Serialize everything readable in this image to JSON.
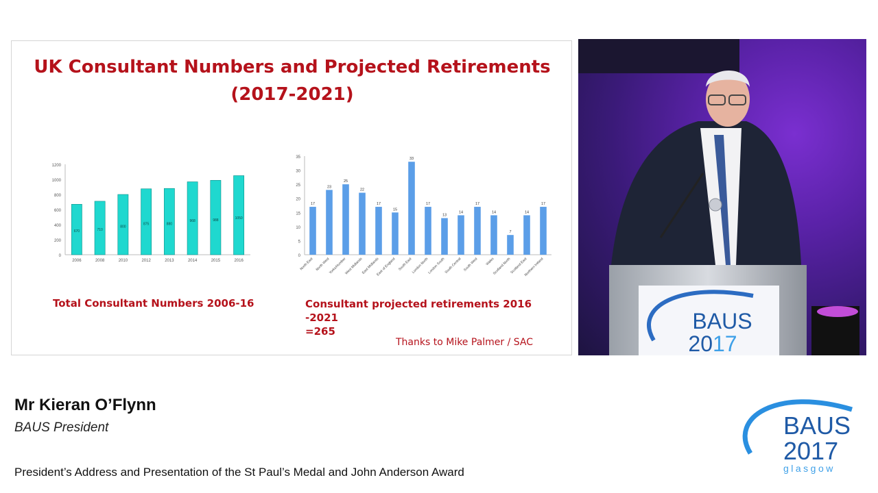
{
  "slide": {
    "title_line1": "UK Consultant Numbers and Projected Retirements",
    "title_line2": "(2017-2021)",
    "caption_left": "Total Consultant Numbers 2006-16",
    "caption_right_line1": "Consultant projected retirements 2016 -2021",
    "caption_right_line2": "=265",
    "thanks": "Thanks to Mike Palmer / SAC"
  },
  "chart_data": [
    {
      "type": "bar",
      "categories": [
        "2006",
        "2008",
        "2010",
        "2012",
        "2013",
        "2014",
        "2015",
        "2016"
      ],
      "values": [
        670,
        710,
        800,
        875,
        880,
        968,
        988,
        1050
      ],
      "data_labels": [
        "670",
        "710",
        "800",
        "875",
        "880",
        "968",
        "988",
        "1050"
      ],
      "ylim": [
        0,
        1200
      ],
      "yticks": [
        0,
        200,
        400,
        600,
        800,
        1000,
        1200
      ],
      "color": "#1fd8cf",
      "grid": false
    },
    {
      "type": "bar",
      "categories": [
        "North East",
        "North West",
        "Yorks/Humber",
        "West Midlands",
        "East Midlands",
        "East of England",
        "South East",
        "London North",
        "London South",
        "South Central",
        "South West",
        "Wales",
        "Scotland North",
        "Scotland East",
        "Northern Ireland"
      ],
      "values": [
        17,
        23,
        25,
        22,
        17,
        15,
        33,
        17,
        13,
        14,
        17,
        14,
        7,
        14,
        17
      ],
      "ylim": [
        0,
        35
      ],
      "yticks": [
        0,
        5,
        10,
        15,
        20,
        25,
        30,
        35
      ],
      "color": "#5b9ee8",
      "grid": false
    }
  ],
  "video": {
    "lectern_logo_line1": "BAUS",
    "lectern_logo_line2_a": "20",
    "lectern_logo_line2_b": "17"
  },
  "footer": {
    "speaker_name": "Mr Kieran O’Flynn",
    "speaker_role": "BAUS President",
    "session_title": "President’s Address and Presentation of the  St Paul’s Medal and John Anderson Award",
    "logo_line1": "BAUS",
    "logo_line2": "2017",
    "logo_city": "glasgow"
  },
  "colors": {
    "title_red": "#b5121b",
    "teal_bar": "#1fd8cf",
    "blue_bar": "#5b9ee8",
    "logo_blue": "#1f5aa6",
    "stage_purple": "#6a2bc0"
  }
}
